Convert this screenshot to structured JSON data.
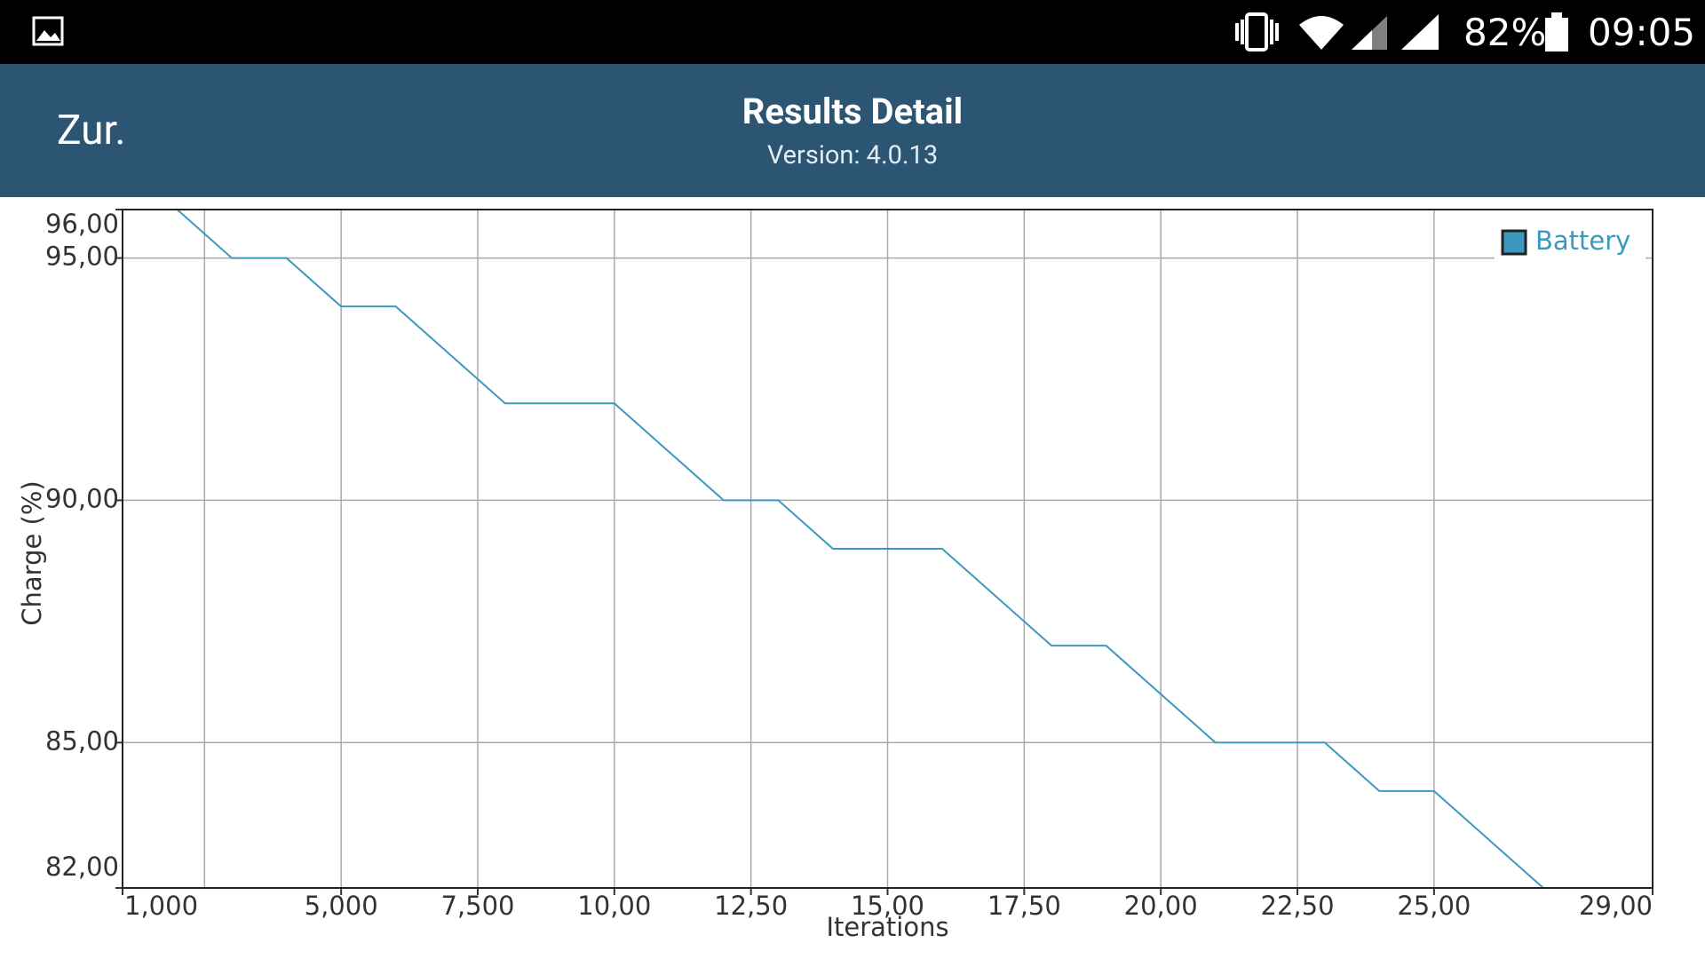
{
  "status_bar": {
    "battery": "82%",
    "time": "09:05"
  },
  "header": {
    "back": "Zur.",
    "title": "Results Detail",
    "subtitle": "Version: 4.0.13"
  },
  "chart_data": {
    "type": "line",
    "y_label": "Charge (%)",
    "x_label": "Iterations",
    "x": [
      1000,
      2000,
      3000,
      4000,
      5000,
      6000,
      8000,
      10000,
      12000,
      13000,
      14000,
      16000,
      18000,
      19000,
      21000,
      23000,
      24000,
      25000,
      27000,
      29000
    ],
    "series": [
      {
        "name": "Battery",
        "color": "#3b99bd",
        "values": [
          96,
          96,
          95,
          95,
          94,
          94,
          92,
          92,
          90,
          90,
          89,
          89,
          87,
          87,
          85,
          85,
          84,
          84,
          82,
          82
        ]
      }
    ],
    "xlim": [
      1000,
      29000
    ],
    "xticks": [
      {
        "value": 1000,
        "label": "1,000"
      },
      {
        "value": 5000,
        "label": "5,000"
      },
      {
        "value": 7500,
        "label": "7,500"
      },
      {
        "value": 10000,
        "label": "10,00"
      },
      {
        "value": 12500,
        "label": "12,50"
      },
      {
        "value": 15000,
        "label": "15,00"
      },
      {
        "value": 17500,
        "label": "17,50"
      },
      {
        "value": 20000,
        "label": "20,00"
      },
      {
        "value": 22500,
        "label": "22,50"
      },
      {
        "value": 25000,
        "label": "25,00"
      },
      {
        "value": 29000,
        "label": "29,00"
      }
    ],
    "xgrid": [
      2500,
      5000,
      7500,
      10000,
      12500,
      15000,
      17500,
      20000,
      22500,
      25000
    ],
    "ylim": [
      82,
      96
    ],
    "yticks": [
      {
        "value": 96,
        "label": "96,00"
      },
      {
        "value": 95,
        "label": "95,00"
      },
      {
        "value": 90,
        "label": "90,00"
      },
      {
        "value": 85,
        "label": "85,00"
      },
      {
        "value": 82,
        "label": "82,00"
      }
    ],
    "grid": true,
    "legend": "upper right"
  }
}
